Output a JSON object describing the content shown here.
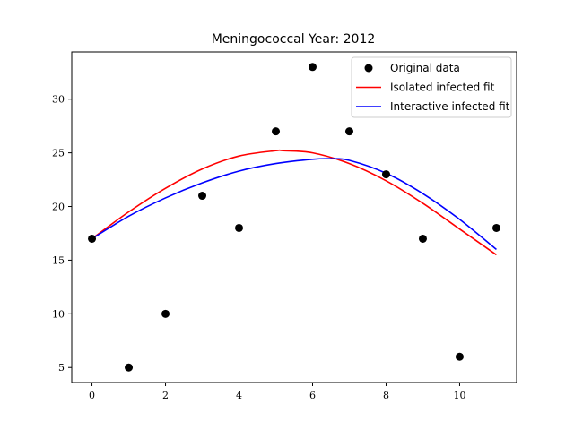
{
  "chart_data": {
    "type": "line",
    "title": "Meningococcal Year: 2012",
    "xlabel": "",
    "ylabel": "",
    "xlim": [
      -0.55,
      11.55
    ],
    "ylim": [
      3.6,
      34.4
    ],
    "xticks": [
      0,
      2,
      4,
      6,
      8,
      10
    ],
    "yticks": [
      5,
      10,
      15,
      20,
      25,
      30
    ],
    "grid": false,
    "legend_position": "top-right",
    "series": [
      {
        "name": "Original data",
        "kind": "scatter",
        "color": "#000000",
        "x": [
          0,
          1,
          2,
          3,
          4,
          5,
          6,
          7,
          8,
          9,
          10,
          11
        ],
        "y": [
          17,
          5,
          10,
          21,
          18,
          27,
          33,
          27,
          23,
          17,
          6,
          18
        ]
      },
      {
        "name": "Isolated infected fit",
        "kind": "line",
        "color": "#ff0000",
        "x": [
          0,
          1,
          2,
          3,
          4,
          5,
          5.2,
          6,
          7,
          8,
          9,
          10,
          11
        ],
        "y": [
          17,
          19.5,
          21.7,
          23.5,
          24.7,
          25.2,
          25.2,
          25.0,
          24.0,
          22.4,
          20.3,
          17.9,
          15.5
        ]
      },
      {
        "name": "Interactive infected fit",
        "kind": "line",
        "color": "#0000ff",
        "x": [
          0,
          1,
          2,
          3,
          4,
          5,
          6,
          6.5,
          7,
          8,
          9,
          10,
          11
        ],
        "y": [
          17,
          19.1,
          20.8,
          22.2,
          23.3,
          24.0,
          24.4,
          24.45,
          24.3,
          23.1,
          21.2,
          18.8,
          16.0
        ]
      }
    ]
  }
}
